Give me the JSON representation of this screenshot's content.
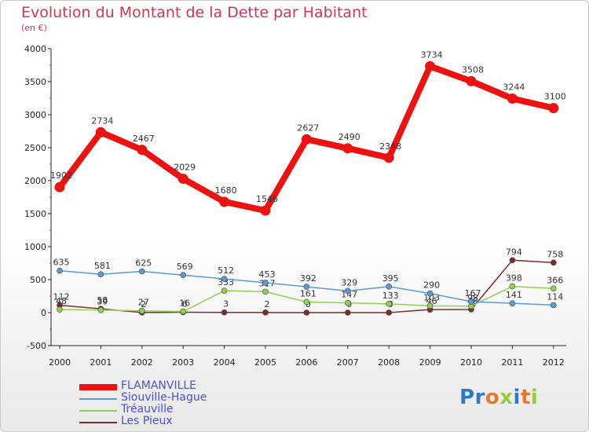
{
  "chart_data": {
    "type": "line",
    "title": "Evolution du Montant de la Dette par Habitant",
    "subtitle": "(en €)",
    "categories": [
      "2000",
      "2001",
      "2002",
      "2003",
      "2004",
      "2005",
      "2006",
      "2007",
      "2008",
      "2009",
      "2010",
      "2011",
      "2012"
    ],
    "ylim": [
      -500,
      4000
    ],
    "yticks": [
      -500,
      0,
      500,
      1000,
      1500,
      2000,
      2500,
      3000,
      3500,
      4000
    ],
    "grid": false,
    "legend_position": "bottom-left",
    "series": [
      {
        "name": "FLAMANVILLE",
        "color": "#ee1111",
        "values": [
          1902,
          2734,
          2467,
          2029,
          1680,
          1546,
          2627,
          2490,
          2348,
          3734,
          3508,
          3244,
          3100
        ]
      },
      {
        "name": "Siouville-Hague",
        "color": "#5b9bd5",
        "values": [
          635,
          581,
          625,
          569,
          512,
          453,
          392,
          329,
          395,
          290,
          167,
          141,
          114
        ]
      },
      {
        "name": "Tréauville",
        "color": "#92d050",
        "values": [
          48,
          39,
          27,
          16,
          333,
          317,
          161,
          147,
          133,
          103,
          98,
          398,
          366
        ]
      },
      {
        "name": "Les Pieux",
        "color": "#7b2c2c",
        "values": [
          112,
          58,
          2,
          6,
          3,
          2,
          0,
          0,
          0,
          46,
          48,
          794,
          758
        ]
      }
    ]
  },
  "brand": {
    "text": "Proxiti",
    "letter_colors": [
      "#2e7bc4",
      "#2e7bc4",
      "#e8792a",
      "#9bc93d",
      "#2e7bc4",
      "#e8792a",
      "#9bc93d"
    ]
  }
}
